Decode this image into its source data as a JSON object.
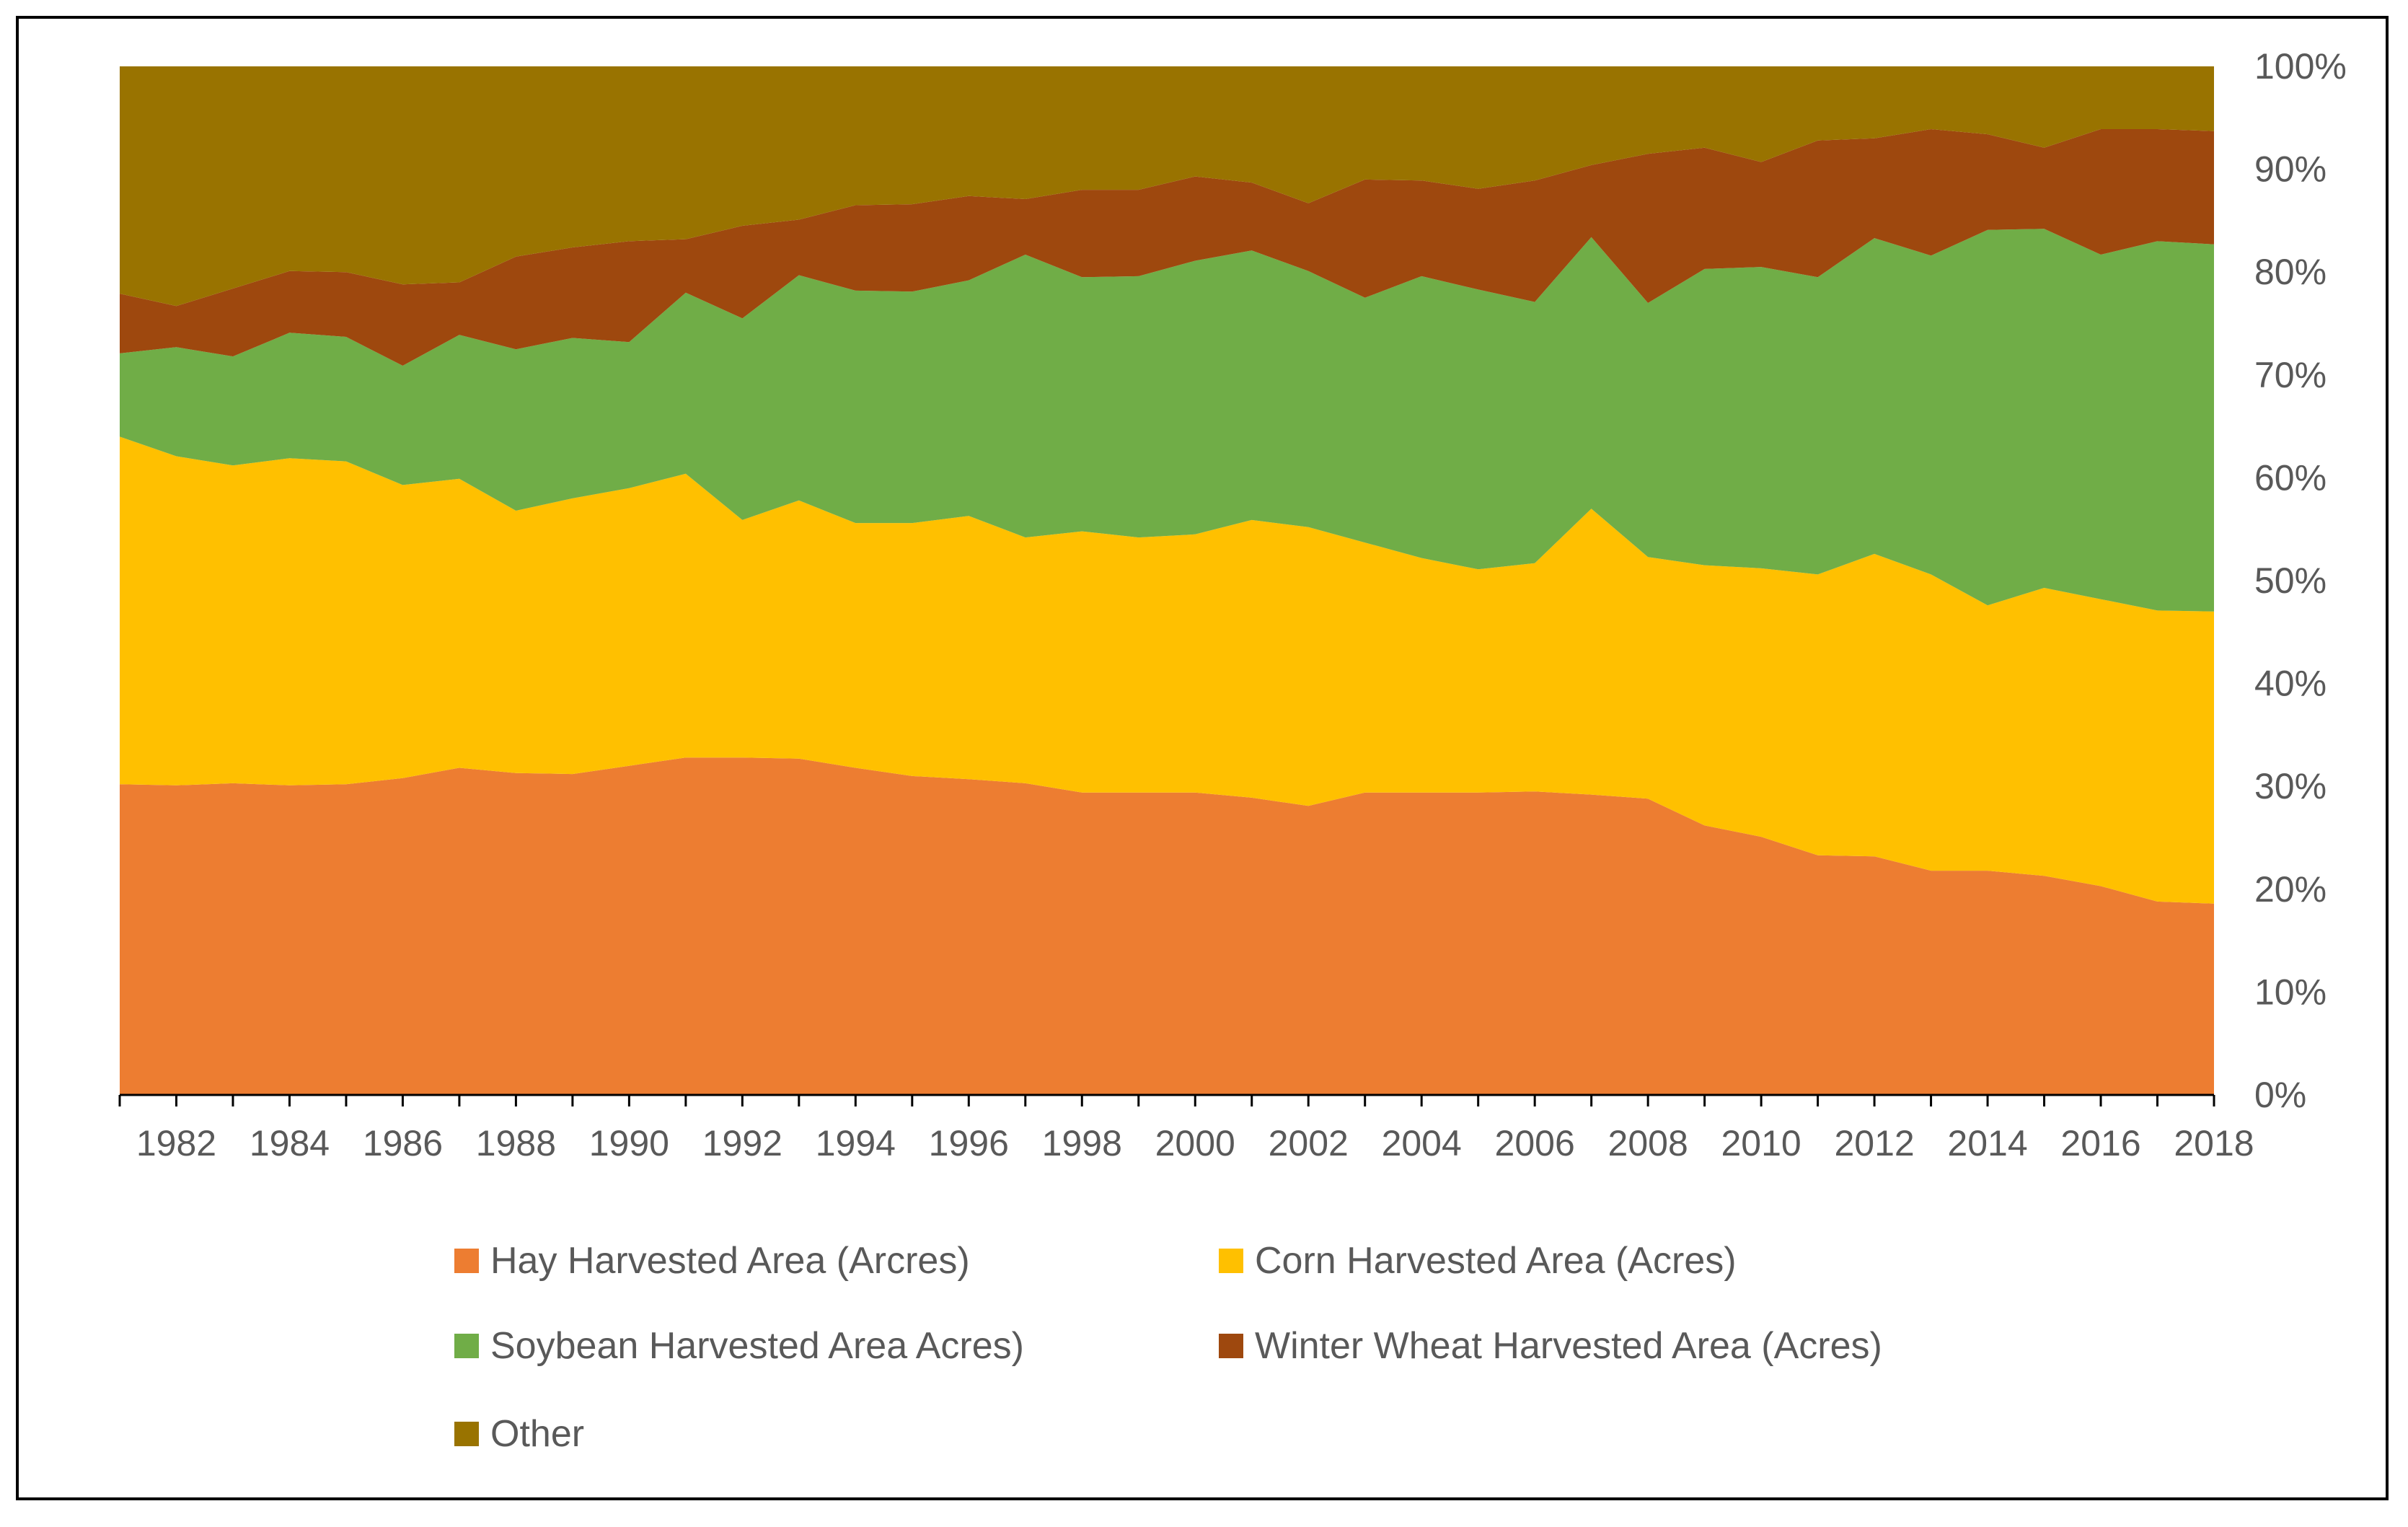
{
  "chart_data": {
    "type": "area",
    "stacked": true,
    "normalized": "percent",
    "title": "",
    "xlabel": "",
    "ylabel": "",
    "ylim": [
      0,
      100
    ],
    "y_axis_position": "right",
    "legend_position": "bottom",
    "x": [
      1981,
      1982,
      1983,
      1984,
      1985,
      1986,
      1987,
      1988,
      1989,
      1990,
      1991,
      1992,
      1993,
      1994,
      1995,
      1996,
      1997,
      1998,
      1999,
      2000,
      2001,
      2002,
      2003,
      2004,
      2005,
      2006,
      2007,
      2008,
      2009,
      2010,
      2011,
      2012,
      2013,
      2014,
      2015,
      2016,
      2017,
      2018
    ],
    "x_tick_labels": [
      "1982",
      "1984",
      "1986",
      "1988",
      "1990",
      "1992",
      "1994",
      "1996",
      "1998",
      "2000",
      "2002",
      "2004",
      "2006",
      "2008",
      "2010",
      "2012",
      "2014",
      "2016",
      "2018"
    ],
    "y_tick_labels": [
      "0%",
      "10%",
      "20%",
      "30%",
      "40%",
      "50%",
      "60%",
      "70%",
      "80%",
      "90%",
      "100%"
    ],
    "series": [
      {
        "name": "Hay Harvested Area (Arcres)",
        "color": "#ED7D31",
        "values": [
          30.2,
          30.1,
          30.3,
          30.1,
          30.2,
          30.8,
          31.8,
          31.3,
          31.2,
          32.0,
          32.8,
          32.8,
          32.7,
          31.8,
          31.0,
          30.7,
          30.3,
          29.4,
          29.4,
          29.4,
          28.9,
          28.1,
          29.4,
          29.4,
          29.4,
          29.5,
          29.2,
          28.8,
          26.2,
          25.1,
          23.3,
          23.2,
          21.8,
          21.8,
          21.3,
          20.3,
          18.8,
          18.6
        ]
      },
      {
        "name": "Corn Harvested Area (Acres)",
        "color": "#FFC000",
        "values": [
          33.8,
          32.0,
          30.9,
          31.8,
          31.4,
          28.5,
          28.1,
          25.5,
          26.8,
          27.0,
          27.6,
          23.1,
          25.1,
          23.8,
          24.6,
          25.6,
          23.9,
          25.4,
          24.8,
          25.1,
          27.0,
          27.1,
          24.3,
          22.8,
          21.7,
          22.2,
          27.8,
          23.5,
          25.3,
          26.1,
          27.3,
          29.4,
          28.8,
          25.8,
          28.0,
          27.9,
          28.3,
          28.4
        ]
      },
      {
        "name": "Soybean Harvested Area Acres)",
        "color": "#70AD47",
        "values": [
          8.1,
          10.6,
          10.6,
          12.2,
          12.1,
          11.6,
          14.0,
          15.7,
          15.6,
          14.2,
          17.6,
          19.6,
          21.9,
          22.6,
          22.5,
          22.9,
          27.5,
          24.7,
          25.4,
          26.6,
          26.2,
          24.9,
          23.8,
          27.4,
          27.2,
          25.4,
          26.4,
          24.7,
          28.8,
          29.3,
          28.9,
          30.7,
          31.0,
          36.5,
          34.9,
          33.5,
          35.9,
          35.7
        ]
      },
      {
        "name": "Winter Wheat Harvested Area (Acres)",
        "color": "#9E480E",
        "values": [
          5.8,
          4.0,
          6.6,
          6.0,
          6.3,
          7.9,
          5.1,
          9.0,
          8.8,
          9.8,
          5.2,
          9.0,
          5.4,
          8.3,
          8.5,
          8.2,
          5.4,
          8.5,
          8.4,
          8.2,
          6.6,
          6.6,
          11.5,
          9.3,
          9.8,
          11.8,
          7.0,
          14.5,
          11.8,
          10.2,
          13.3,
          9.7,
          12.3,
          9.3,
          7.9,
          12.2,
          10.9,
          11.0
        ]
      },
      {
        "name": "Other",
        "color": "#997300",
        "values": [
          22.1,
          23.3,
          21.6,
          19.9,
          20.0,
          21.2,
          21.0,
          18.5,
          17.6,
          17.0,
          16.8,
          15.5,
          14.9,
          13.5,
          13.4,
          12.6,
          12.9,
          12.0,
          12.0,
          10.7,
          11.3,
          13.3,
          11.0,
          11.1,
          11.9,
          11.1,
          9.6,
          8.5,
          7.9,
          9.3,
          7.2,
          7.0,
          6.1,
          6.6,
          7.9,
          6.1,
          6.1,
          6.3
        ]
      }
    ]
  }
}
